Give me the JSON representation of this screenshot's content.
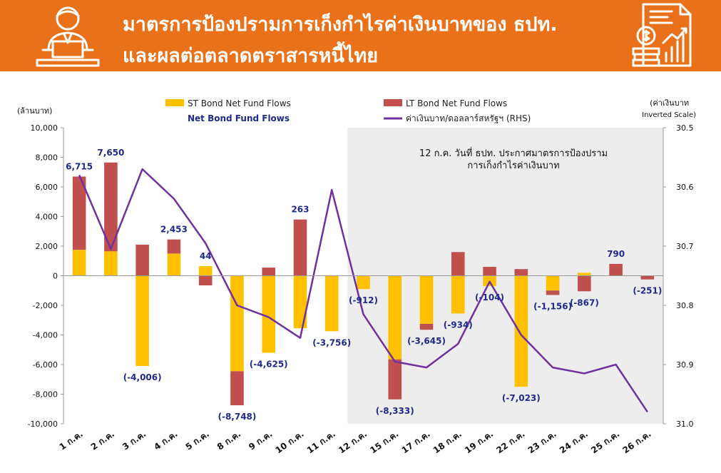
{
  "header": {
    "title_line1": "มาตรการป้องปรามการเก็งกำไรค่าเงินบาทของ ธปท.",
    "title_line2": "และผลต่อตลาดตราสารหนี้ไทย",
    "left_icon": "presenter-icon",
    "right_icon": "report-coins-icon",
    "bg_color": "#E8711A"
  },
  "chart_data": {
    "type": "bar",
    "left_axis_label": "(ล้านบาท)",
    "right_axis_label_line1": "(ค่าเงินบาท",
    "right_axis_label_line2": "Inverted Scale)",
    "ylim": [
      -10000,
      10000
    ],
    "y_ticks": [
      "10,000",
      "8,000",
      "6,000",
      "4,000",
      "2,000",
      "0",
      "-2,000",
      "-4,000",
      "-6,000",
      "-8,000",
      "-10,000"
    ],
    "y2lim": [
      30.5,
      31.0
    ],
    "y2_inverted": true,
    "y2_ticks": [
      "30.5",
      "30.6",
      "30.7",
      "30.8",
      "30.9",
      "31.0"
    ],
    "categories": [
      "1 ก.ค.",
      "2 ก.ค.",
      "3 ก.ค.",
      "4 ก.ค.",
      "5 ก.ค.",
      "8 ก.ค.",
      "9 ก.ค.",
      "10 ก.ค.",
      "11 ก.ค.",
      "12 ก.ค.",
      "15 ก.ค.",
      "17 ก.ค.",
      "18 ก.ค.",
      "19 ก.ค.",
      "22 ก.ค.",
      "23 ก.ค.",
      "24 ก.ค.",
      "25 ก.ค.",
      "26 ก.ค."
    ],
    "series": [
      {
        "name": "ST Bond Net Fund Flows",
        "kind": "bar",
        "color": "#FFC000",
        "values": [
          1750,
          1650,
          -6100,
          1500,
          650,
          -6450,
          -5200,
          -3550,
          -3750,
          -900,
          -5650,
          -3250,
          -2550,
          -700,
          -7500,
          -1000,
          200,
          0,
          0
        ]
      },
      {
        "name": "LT Bond Net Fund Flows",
        "kind": "bar",
        "color": "#C0504D",
        "values": [
          4950,
          6000,
          2100,
          950,
          -650,
          -2300,
          550,
          3800,
          0,
          0,
          -2700,
          -400,
          1600,
          600,
          450,
          -300,
          -1050,
          800,
          -250
        ]
      },
      {
        "name": "Net Bond Fund Flows",
        "kind": "label",
        "values": [
          6715,
          7650,
          -4006,
          2453,
          44,
          -8748,
          -4625,
          263,
          -3756,
          -912,
          -8333,
          -3645,
          -934,
          -104,
          -7023,
          -1156,
          -867,
          790,
          -251
        ],
        "labels": [
          "6,715",
          "7,650",
          "(-4,006)",
          "2,453",
          "44",
          "(-8,748)",
          "(-4,625)",
          "263",
          "(-3,756)",
          "(-912)",
          "(-8,333)",
          "(-3,645)",
          "(-934)",
          "(-104)",
          "(-7,023)",
          "(-1,156)",
          "(-867)",
          "790",
          "(-251)"
        ]
      },
      {
        "name": "ค่าเงินบาท/ดอลลาร์สหรัฐฯ (RHS)",
        "kind": "line",
        "axis": "right",
        "color": "#7030A0",
        "values": [
          30.58,
          30.705,
          30.57,
          30.62,
          30.695,
          30.8,
          30.82,
          30.855,
          30.605,
          30.815,
          30.895,
          30.905,
          30.865,
          30.76,
          30.85,
          30.905,
          30.915,
          30.9,
          30.98
        ]
      }
    ],
    "highlight": {
      "from_category": "12 ก.ค.",
      "to_category": "26 ก.ค.",
      "color": "#EDEDED"
    },
    "annotation_line1": "12 ก.ค. วันที่ ธปท. ประกาศมาตรการป้องปราม",
    "annotation_line2": "การเก็งกำไรค่าเงินบาท"
  }
}
